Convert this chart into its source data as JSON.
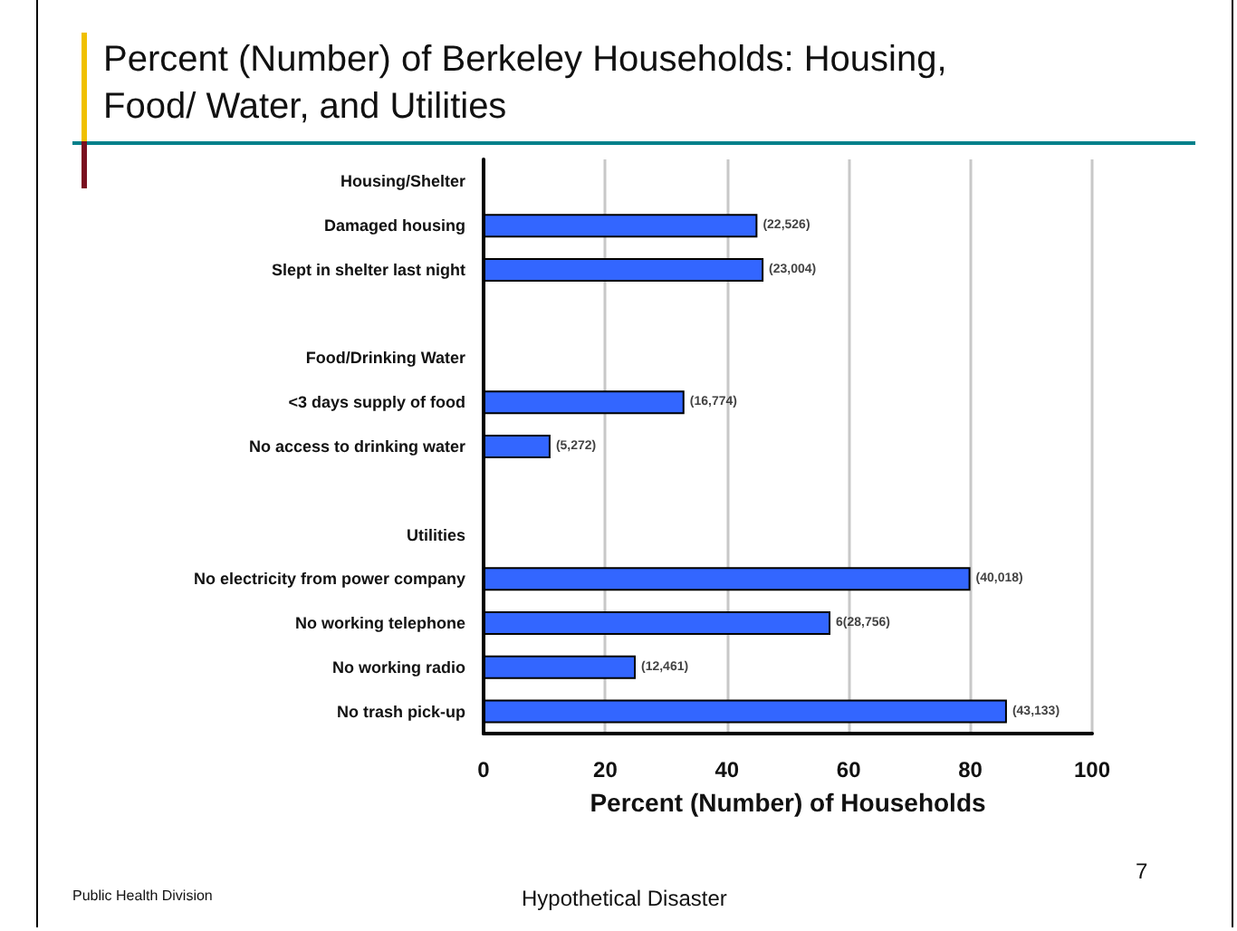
{
  "chart_data": {
    "type": "bar",
    "orientation": "horizontal",
    "title": "Percent (Number) of Berkeley Households: Housing, Food/ Water, and Utilities",
    "xlabel": "Percent (Number) of Households",
    "categories": [
      "Housing/Shelter",
      "Damaged housing",
      "Slept in shelter last night",
      null,
      "Food/Drinking Water",
      "<3 days supply of food",
      "No access to drinking water",
      null,
      "Utilities",
      "No electricity from power company",
      "No working telephone",
      "No working radio",
      "No trash pick-up"
    ],
    "values": [
      null,
      45,
      46,
      null,
      null,
      33,
      11,
      null,
      null,
      80,
      57,
      25,
      86
    ],
    "color": "#3366ff",
    "xlim": [
      0,
      100
    ],
    "xticks": [
      0,
      20,
      40,
      60,
      80,
      100
    ],
    "grid": "x",
    "annotations": [
      {
        "text": "(22,526)",
        "x": 45,
        "y": "Damaged housing"
      },
      {
        "text": "(23,004)",
        "x": 46,
        "y": "Slept in shelter last night"
      },
      {
        "text": "(16,774)",
        "x": 33,
        "y": "<3 days supply of food"
      },
      {
        "text": "(5,272)",
        "x": 11,
        "y": "No access to drinking water"
      },
      {
        "text": "(40,018)",
        "x": 80,
        "y": "No electricity from power company"
      },
      {
        "text": "6(28,756)",
        "x": 57,
        "y": "No working telephone"
      },
      {
        "text": "(12,461)",
        "x": 25,
        "y": "No working radio"
      },
      {
        "text": "(43,133)",
        "x": 86,
        "y": "No trash pick-up"
      },
      "Public Health Division",
      "Hypothetical Disaster",
      "7"
    ]
  }
}
